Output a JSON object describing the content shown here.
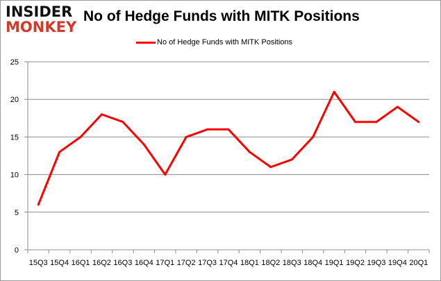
{
  "logo": {
    "line1": "INSIDER",
    "line2": "MONKEY"
  },
  "chart_data": {
    "type": "line",
    "title": "No of Hedge Funds with MITK Positions",
    "xlabel": "",
    "ylabel": "",
    "categories": [
      "15Q3",
      "15Q4",
      "16Q1",
      "16Q2",
      "16Q3",
      "16Q4",
      "17Q1",
      "17Q2",
      "17Q3",
      "17Q4",
      "18Q1",
      "18Q2",
      "18Q3",
      "18Q4",
      "19Q1",
      "19Q2",
      "19Q3",
      "19Q4",
      "20Q1"
    ],
    "series": [
      {
        "name": "No of Hedge Funds with MITK Positions",
        "color": "#ff0000",
        "values": [
          6,
          13,
          15,
          18,
          17,
          14,
          10,
          15,
          16,
          16,
          13,
          11,
          12,
          15,
          21,
          17,
          17,
          19,
          17
        ]
      }
    ],
    "ylim": [
      0,
      25
    ],
    "yticks": [
      0,
      5,
      10,
      15,
      20,
      25
    ],
    "grid": true,
    "legend": "top"
  }
}
